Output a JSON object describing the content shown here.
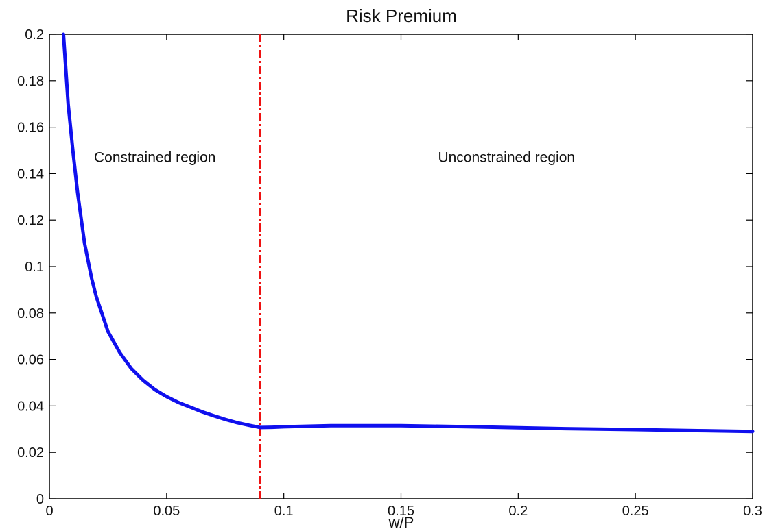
{
  "chart_data": {
    "type": "line",
    "title": "Risk Premium",
    "xlabel": "w/P",
    "ylabel": "",
    "xlim": [
      0,
      0.3
    ],
    "ylim": [
      0,
      0.2
    ],
    "grid": false,
    "x_ticks": [
      0,
      0.05,
      0.1,
      0.15,
      0.2,
      0.25,
      0.3
    ],
    "x_tick_labels": [
      "0",
      "0.05",
      "0.1",
      "0.15",
      "0.2",
      "0.25",
      "0.3"
    ],
    "y_ticks": [
      0,
      0.02,
      0.04,
      0.06,
      0.08,
      0.1,
      0.12,
      0.14,
      0.16,
      0.18,
      0.2
    ],
    "y_tick_labels": [
      "0",
      "0.02",
      "0.04",
      "0.06",
      "0.08",
      "0.1",
      "0.12",
      "0.14",
      "0.16",
      "0.18",
      "0.2"
    ],
    "series": [
      {
        "color": "#1010ee",
        "x": [
          0.006,
          0.007,
          0.008,
          0.01,
          0.012,
          0.015,
          0.018,
          0.02,
          0.025,
          0.03,
          0.035,
          0.04,
          0.045,
          0.05,
          0.055,
          0.06,
          0.065,
          0.07,
          0.075,
          0.08,
          0.085,
          0.09,
          0.095,
          0.1,
          0.12,
          0.15,
          0.18,
          0.2,
          0.22,
          0.25,
          0.28,
          0.3
        ],
        "y": [
          0.2,
          0.185,
          0.17,
          0.15,
          0.132,
          0.11,
          0.095,
          0.087,
          0.072,
          0.063,
          0.056,
          0.051,
          0.047,
          0.044,
          0.0415,
          0.0395,
          0.0375,
          0.0358,
          0.0342,
          0.0328,
          0.0317,
          0.0307,
          0.0308,
          0.031,
          0.0315,
          0.0315,
          0.031,
          0.0306,
          0.0302,
          0.0298,
          0.0293,
          0.029
        ]
      }
    ],
    "vertical_line": {
      "x": 0.09,
      "color": "#ee1111",
      "style": "dash-dot"
    },
    "annotations": [
      {
        "text": "Constrained region",
        "x": 0.045,
        "y": 0.145
      },
      {
        "text": "Unconstrained region",
        "x": 0.195,
        "y": 0.145
      }
    ]
  }
}
